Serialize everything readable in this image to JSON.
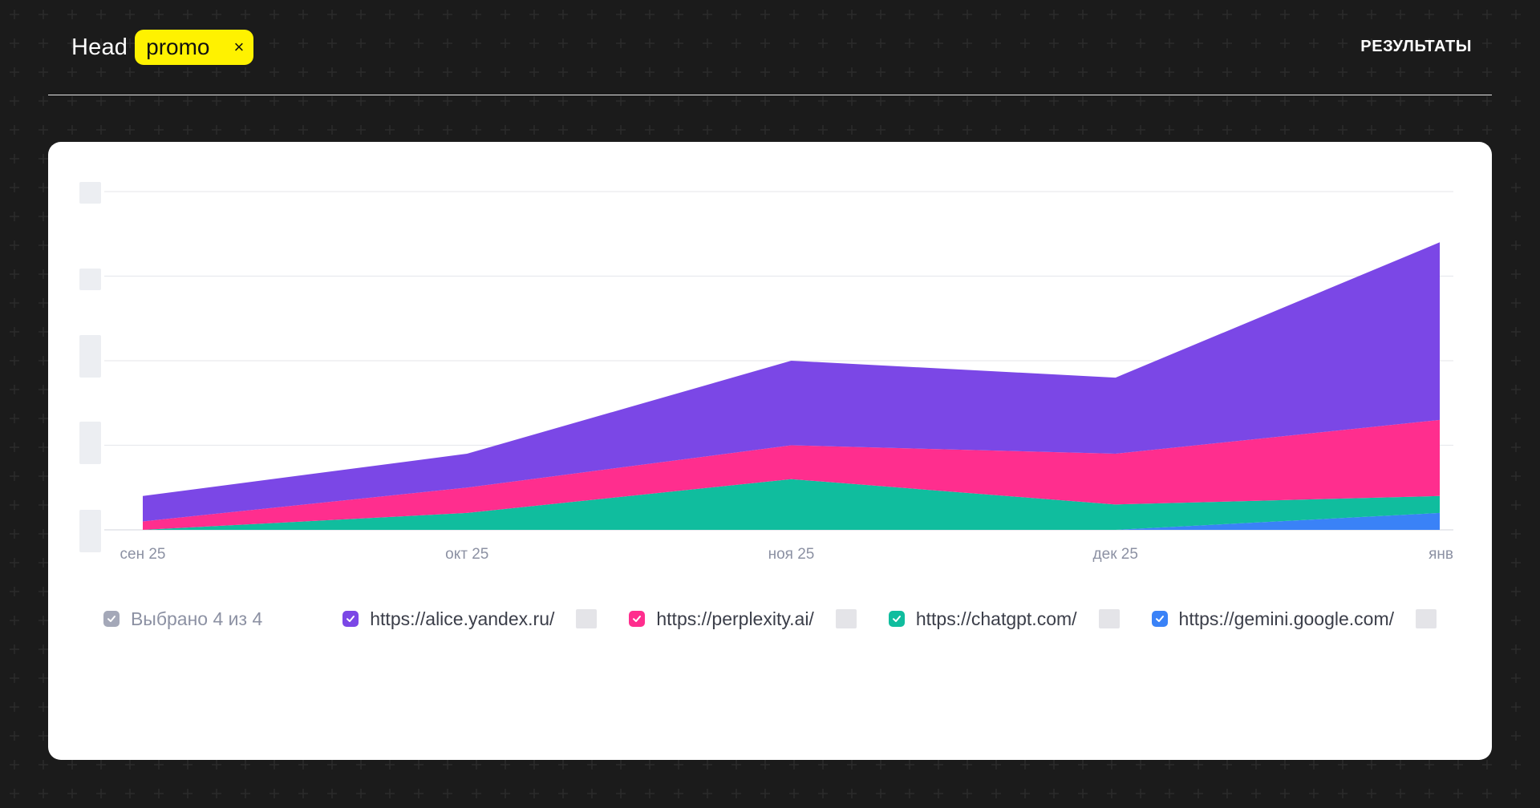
{
  "header": {
    "brand_name": "Head",
    "promo_chip_label": "promo",
    "promo_chip_close": "×",
    "nav_results": "РЕЗУЛЬТАТЫ"
  },
  "colors": {
    "background": "#1b1b1b",
    "accent_yellow": "#fff200",
    "card": "#ffffff",
    "alice": "#7b47e6",
    "perplexity": "#ff2e8e",
    "chatgpt": "#10bd9e",
    "gemini": "#3a82f7",
    "summary_check": "#a4a8b8"
  },
  "chart_data": {
    "type": "area",
    "stacked": true,
    "categories": [
      "сен 25",
      "окт 25",
      "ноя 25",
      "дек 25",
      "янв"
    ],
    "ylim": [
      0,
      4
    ],
    "grid": true,
    "y_tick_labels_hidden": true,
    "series": [
      {
        "name": "https://gemini.google.com/",
        "color": "#3a82f7",
        "values": [
          0,
          0,
          0,
          0,
          0.2
        ]
      },
      {
        "name": "https://chatgpt.com/",
        "color": "#10bd9e",
        "values": [
          0,
          0.2,
          0.6,
          0.3,
          0.2
        ]
      },
      {
        "name": "https://perplexity.ai/",
        "color": "#ff2e8e",
        "values": [
          0.1,
          0.3,
          0.4,
          0.6,
          0.9
        ]
      },
      {
        "name": "https://alice.yandex.ru/",
        "color": "#7b47e6",
        "values": [
          0.3,
          0.4,
          1.0,
          0.9,
          2.1
        ]
      }
    ]
  },
  "legend": {
    "summary": "Выбрано 4 из 4",
    "items": [
      {
        "label": "https://alice.yandex.ru/",
        "color": "#7b47e6",
        "value": ""
      },
      {
        "label": "https://perplexity.ai/",
        "color": "#ff2e8e",
        "value": ""
      },
      {
        "label": "https://chatgpt.com/",
        "color": "#10bd9e",
        "value": ""
      },
      {
        "label": "https://gemini.google.com/",
        "color": "#3a82f7",
        "value": ""
      }
    ]
  }
}
